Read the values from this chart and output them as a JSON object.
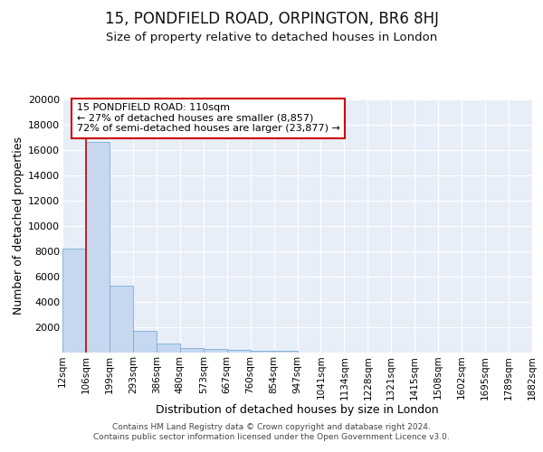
{
  "title": "15, PONDFIELD ROAD, ORPINGTON, BR6 8HJ",
  "subtitle": "Size of property relative to detached houses in London",
  "xlabel": "Distribution of detached houses by size in London",
  "ylabel": "Number of detached properties",
  "bar_values": [
    8200,
    16650,
    5300,
    1750,
    750,
    340,
    270,
    200,
    170,
    130,
    0,
    0,
    0,
    0,
    0,
    0,
    0,
    0,
    0,
    0
  ],
  "categories": [
    "12sqm",
    "106sqm",
    "199sqm",
    "293sqm",
    "386sqm",
    "480sqm",
    "573sqm",
    "667sqm",
    "760sqm",
    "854sqm",
    "947sqm",
    "1041sqm",
    "1134sqm",
    "1228sqm",
    "1321sqm",
    "1415sqm",
    "1508sqm",
    "1602sqm",
    "1695sqm",
    "1789sqm",
    "1882sqm"
  ],
  "bar_color": "#c5d8f0",
  "bar_edge_color": "#7aadd4",
  "background_color": "#e8eef8",
  "grid_color": "#ffffff",
  "annotation_line1": "15 PONDFIELD ROAD: 110sqm",
  "annotation_line2": "← 27% of detached houses are smaller (8,857)",
  "annotation_line3": "72% of semi-detached houses are larger (23,877) →",
  "annotation_box_color": "#ffffff",
  "annotation_box_edge": "#cc0000",
  "property_line_color": "#cc0000",
  "property_line_x": 1.0,
  "ylim": [
    0,
    20000
  ],
  "yticks": [
    0,
    2000,
    4000,
    6000,
    8000,
    10000,
    12000,
    14000,
    16000,
    18000,
    20000
  ],
  "footer_line1": "Contains HM Land Registry data © Crown copyright and database right 2024.",
  "footer_line2": "Contains public sector information licensed under the Open Government Licence v3.0.",
  "title_fontsize": 12,
  "subtitle_fontsize": 9.5,
  "ylabel_fontsize": 9,
  "xlabel_fontsize": 9,
  "ytick_fontsize": 8,
  "xtick_fontsize": 7.5
}
